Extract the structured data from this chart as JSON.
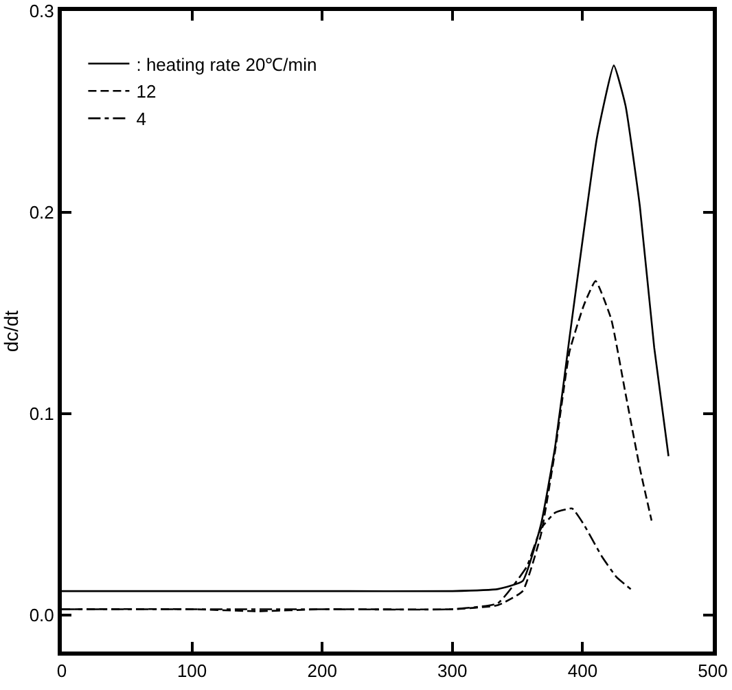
{
  "chart_data": {
    "type": "line",
    "ylabel": "dc/dt",
    "xlim": [
      0,
      500
    ],
    "xticks": [
      0,
      100,
      200,
      300,
      400,
      500
    ],
    "ylim": [
      -0.018,
      0.3
    ],
    "yticks": [
      {
        "value": 0,
        "label": "0.0"
      },
      0.1,
      0.2,
      0.3
    ],
    "grid": false,
    "legend": "top left",
    "marker": "none",
    "series": [
      {
        "name": ": heating rate 20℃/min",
        "color": "#000000",
        "line_style": "solid",
        "x": [
          0,
          100,
          200,
          300,
          335,
          354,
          368,
          379,
          390,
          401,
          411,
          424,
          433,
          444,
          455,
          466
        ],
        "values": [
          0.012,
          0.012,
          0.012,
          0.012,
          0.013,
          0.017,
          0.045,
          0.084,
          0.138,
          0.191,
          0.237,
          0.273,
          0.253,
          0.203,
          0.133,
          0.079
        ]
      },
      {
        "name": "12",
        "color": "#000000",
        "line_style": "dashed",
        "x": [
          0,
          100,
          150,
          200,
          300,
          335,
          354,
          368,
          379,
          390,
          401,
          410,
          422,
          433,
          444,
          453
        ],
        "values": [
          0.003,
          0.003,
          0.002,
          0.003,
          0.003,
          0.005,
          0.012,
          0.04,
          0.082,
          0.131,
          0.154,
          0.166,
          0.147,
          0.11,
          0.073,
          0.047
        ]
      },
      {
        "name": "4",
        "color": "#000000",
        "line_style": "dashdot",
        "x": [
          0,
          100,
          200,
          300,
          335,
          357,
          368,
          379,
          392,
          401,
          415,
          426,
          437
        ],
        "values": [
          0.003,
          0.003,
          0.003,
          0.003,
          0.006,
          0.024,
          0.043,
          0.051,
          0.053,
          0.045,
          0.029,
          0.019,
          0.013
        ]
      }
    ]
  }
}
